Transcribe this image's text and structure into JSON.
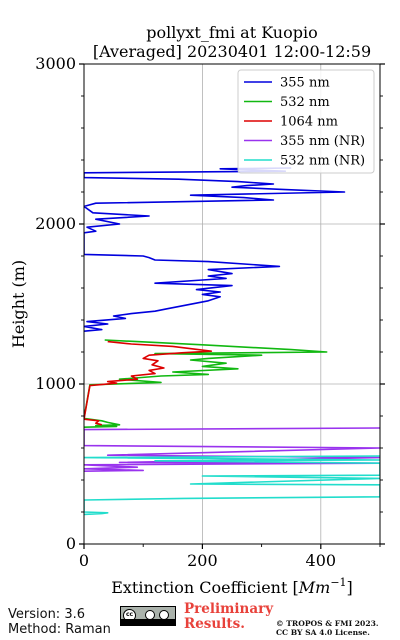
{
  "chart_data": {
    "type": "line",
    "title": "pollyxt_fmi at Kuopio",
    "subtitle": "[Averaged] 20230401 12:00-12:59",
    "xlabel": "Extinction Coefficient [$Mm^{-1}$]",
    "xlabel_text": "Extinction Coefficient [",
    "xlabel_unit": "Mm",
    "xlabel_exp": "−1",
    "xlabel_close": "]",
    "ylabel": "Height (m)",
    "xlim": [
      0,
      500
    ],
    "ylim": [
      0,
      3000
    ],
    "xticks": [
      0,
      200,
      400
    ],
    "xtick_labels": [
      "0",
      "200",
      "400"
    ],
    "yticks": [
      0,
      1000,
      2000,
      3000
    ],
    "ytick_labels": [
      "0",
      "1000",
      "2000",
      "3000"
    ],
    "grid": true,
    "legend_position": "top-right",
    "series": [
      {
        "name": "355 nm",
        "color": "#0000dd",
        "points": [
          [
            350,
            2350
          ],
          [
            230,
            2345
          ],
          [
            340,
            2330
          ],
          [
            0,
            2320
          ],
          [
            0,
            2290
          ],
          [
            160,
            2280
          ],
          [
            260,
            2265
          ],
          [
            320,
            2250
          ],
          [
            275,
            2240
          ],
          [
            250,
            2230
          ],
          [
            340,
            2215
          ],
          [
            440,
            2200
          ],
          [
            180,
            2180
          ],
          [
            270,
            2165
          ],
          [
            320,
            2150
          ],
          [
            20,
            2130
          ],
          [
            0,
            2110
          ],
          [
            15,
            2070
          ],
          [
            110,
            2050
          ],
          [
            20,
            2030
          ],
          [
            60,
            2000
          ],
          [
            5,
            1980
          ],
          [
            20,
            1955
          ],
          [
            0,
            1945
          ],
          [
            0,
            1810
          ],
          [
            100,
            1800
          ],
          [
            110,
            1790
          ],
          [
            120,
            1775
          ],
          [
            210,
            1765
          ],
          [
            330,
            1735
          ],
          [
            210,
            1715
          ],
          [
            250,
            1690
          ],
          [
            210,
            1675
          ],
          [
            240,
            1660
          ],
          [
            200,
            1650
          ],
          [
            120,
            1630
          ],
          [
            250,
            1615
          ],
          [
            190,
            1590
          ],
          [
            230,
            1575
          ],
          [
            200,
            1560
          ],
          [
            230,
            1545
          ],
          [
            210,
            1520
          ],
          [
            140,
            1470
          ],
          [
            120,
            1455
          ],
          [
            80,
            1440
          ],
          [
            50,
            1425
          ],
          [
            70,
            1410
          ],
          [
            5,
            1390
          ],
          [
            40,
            1375
          ],
          [
            0,
            1360
          ],
          [
            30,
            1340
          ],
          [
            0,
            1330
          ]
        ]
      },
      {
        "name": "532 nm",
        "color": "#11b811",
        "points": [
          [
            35,
            1275
          ],
          [
            200,
            1245
          ],
          [
            350,
            1215
          ],
          [
            410,
            1200
          ],
          [
            120,
            1190
          ],
          [
            300,
            1180
          ],
          [
            210,
            1160
          ],
          [
            180,
            1150
          ],
          [
            240,
            1130
          ],
          [
            200,
            1110
          ],
          [
            260,
            1095
          ],
          [
            150,
            1075
          ],
          [
            210,
            1060
          ],
          [
            130,
            1050
          ],
          [
            60,
            1030
          ],
          [
            130,
            1010
          ],
          [
            10,
            995
          ],
          [
            0,
            785
          ],
          [
            30,
            770
          ],
          [
            40,
            760
          ],
          [
            60,
            745
          ],
          [
            20,
            740
          ],
          [
            55,
            735
          ],
          [
            0,
            730
          ]
        ]
      },
      {
        "name": "1064 nm",
        "color": "#dd0000",
        "points": [
          [
            40,
            1265
          ],
          [
            80,
            1250
          ],
          [
            150,
            1235
          ],
          [
            215,
            1205
          ],
          [
            165,
            1195
          ],
          [
            110,
            1180
          ],
          [
            100,
            1160
          ],
          [
            125,
            1145
          ],
          [
            115,
            1120
          ],
          [
            135,
            1100
          ],
          [
            110,
            1085
          ],
          [
            120,
            1065
          ],
          [
            80,
            1050
          ],
          [
            90,
            1030
          ],
          [
            40,
            1015
          ],
          [
            55,
            1005
          ],
          [
            10,
            990
          ],
          [
            0,
            780
          ],
          [
            25,
            770
          ],
          [
            20,
            755
          ],
          [
            30,
            745
          ]
        ]
      },
      {
        "name": "355 nm (NR)",
        "color": "#9933ee",
        "points": [
          [
            500,
            725
          ],
          [
            0,
            715
          ],
          [
            0,
            615
          ],
          [
            500,
            600
          ],
          [
            40,
            555
          ],
          [
            500,
            540
          ],
          [
            60,
            510
          ],
          [
            500,
            505
          ],
          [
            0,
            495
          ],
          [
            90,
            480
          ],
          [
            0,
            470
          ],
          [
            100,
            460
          ],
          [
            0,
            455
          ]
        ]
      },
      {
        "name": "532 nm (NR)",
        "color": "#22ddcc",
        "points": [
          [
            500,
            550
          ],
          [
            0,
            540
          ],
          [
            500,
            525
          ],
          [
            120,
            520
          ],
          [
            500,
            505
          ],
          [
            500,
            430
          ],
          [
            200,
            425
          ],
          [
            500,
            410
          ],
          [
            180,
            375
          ],
          [
            500,
            370
          ],
          [
            500,
            295
          ],
          [
            170,
            285
          ],
          [
            0,
            275
          ],
          [
            0,
            270
          ],
          [
            0,
            200
          ],
          [
            40,
            195
          ],
          [
            30,
            190
          ],
          [
            0,
            185
          ]
        ]
      }
    ]
  },
  "footer": {
    "version": "Version: 3.6",
    "method": "Method: Raman",
    "preliminary_line1": "Preliminary",
    "preliminary_line2": "Results.",
    "copyright_line1": "© TROPOS & FMI 2023.",
    "copyright_line2": "CC BY SA 4.0 License.",
    "badge_text": "BY  SA"
  }
}
